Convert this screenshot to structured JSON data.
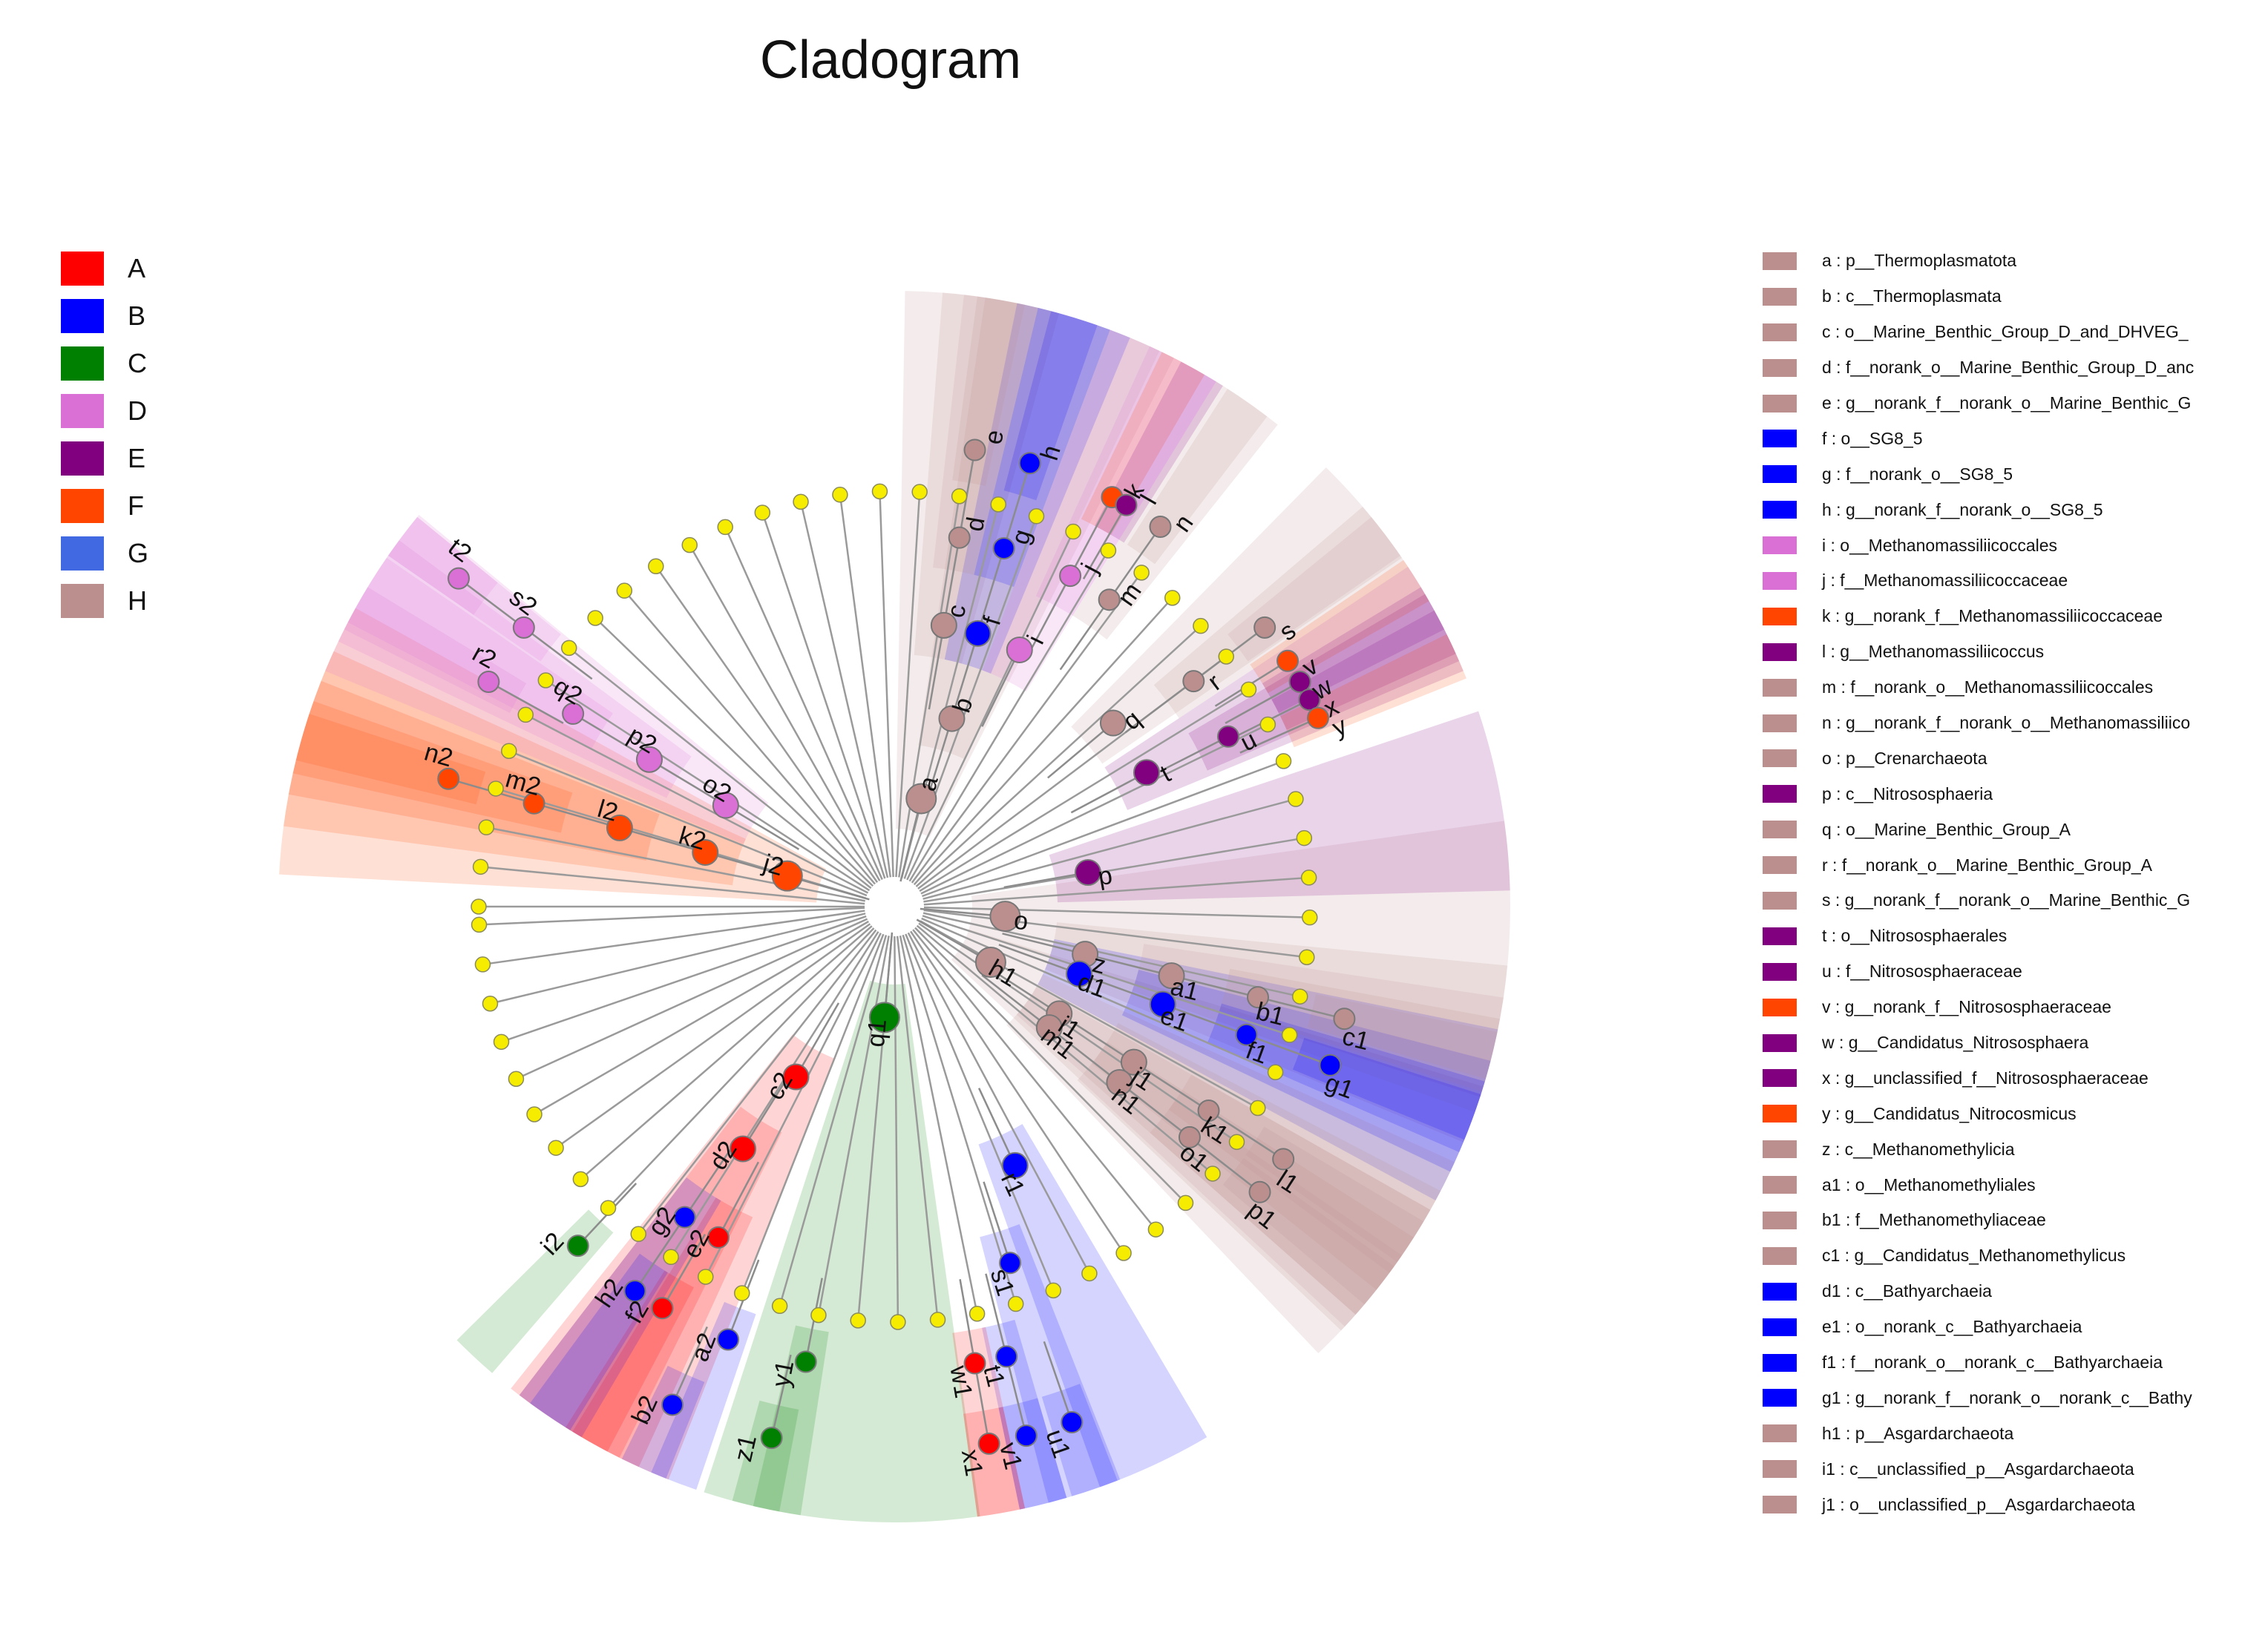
{
  "title": "Cladogram",
  "chart_data": {
    "type": "cladogram",
    "title": "Cladogram",
    "groups": [
      {
        "name": "A",
        "color": "#ff0000"
      },
      {
        "name": "B",
        "color": "#0000ff"
      },
      {
        "name": "C",
        "color": "#008000"
      },
      {
        "name": "D",
        "color": "#da70d6"
      },
      {
        "name": "E",
        "color": "#800080"
      },
      {
        "name": "F",
        "color": "#ff4500"
      },
      {
        "name": "G",
        "color": "#4169e1"
      },
      {
        "name": "H",
        "color": "#bc8f8f"
      }
    ],
    "taxa_key": [
      {
        "id": "a",
        "group": "H",
        "text": "a : p__Thermoplasmatota"
      },
      {
        "id": "b",
        "group": "H",
        "text": "b : c__Thermoplasmata"
      },
      {
        "id": "c",
        "group": "H",
        "text": "c : o__Marine_Benthic_Group_D_and_DHVEG_"
      },
      {
        "id": "d",
        "group": "H",
        "text": "d : f__norank_o__Marine_Benthic_Group_D_anc"
      },
      {
        "id": "e",
        "group": "H",
        "text": "e : g__norank_f__norank_o__Marine_Benthic_G"
      },
      {
        "id": "f",
        "group": "B",
        "text": "f : o__SG8_5"
      },
      {
        "id": "g",
        "group": "B",
        "text": "g : f__norank_o__SG8_5"
      },
      {
        "id": "h",
        "group": "B",
        "text": "h : g__norank_f__norank_o__SG8_5"
      },
      {
        "id": "i",
        "group": "D",
        "text": "i : o__Methanomassiliicoccales"
      },
      {
        "id": "j",
        "group": "D",
        "text": "j : f__Methanomassiliicoccaceae"
      },
      {
        "id": "k",
        "group": "F",
        "text": "k : g__norank_f__Methanomassiliicoccaceae"
      },
      {
        "id": "l",
        "group": "E",
        "text": "l : g__Methanomassiliicoccus"
      },
      {
        "id": "m",
        "group": "H",
        "text": "m : f__norank_o__Methanomassiliicoccales"
      },
      {
        "id": "n",
        "group": "H",
        "text": "n : g__norank_f__norank_o__Methanomassiliico"
      },
      {
        "id": "o",
        "group": "H",
        "text": "o : p__Crenarchaeota"
      },
      {
        "id": "p",
        "group": "E",
        "text": "p : c__Nitrososphaeria"
      },
      {
        "id": "q",
        "group": "H",
        "text": "q : o__Marine_Benthic_Group_A"
      },
      {
        "id": "r",
        "group": "H",
        "text": "r : f__norank_o__Marine_Benthic_Group_A"
      },
      {
        "id": "s",
        "group": "H",
        "text": "s : g__norank_f__norank_o__Marine_Benthic_G"
      },
      {
        "id": "t",
        "group": "E",
        "text": "t : o__Nitrososphaerales"
      },
      {
        "id": "u",
        "group": "E",
        "text": "u : f__Nitrososphaeraceae"
      },
      {
        "id": "v",
        "group": "F",
        "text": "v : g__norank_f__Nitrososphaeraceae"
      },
      {
        "id": "w",
        "group": "E",
        "text": "w : g__Candidatus_Nitrososphaera"
      },
      {
        "id": "x",
        "group": "E",
        "text": "x : g__unclassified_f__Nitrososphaeraceae"
      },
      {
        "id": "y",
        "group": "F",
        "text": "y : g__Candidatus_Nitrocosmicus"
      },
      {
        "id": "z",
        "group": "H",
        "text": "z : c__Methanomethylicia"
      },
      {
        "id": "a1",
        "group": "H",
        "text": "a1 : o__Methanomethyliales"
      },
      {
        "id": "b1",
        "group": "H",
        "text": "b1 : f__Methanomethyliaceae"
      },
      {
        "id": "c1",
        "group": "H",
        "text": "c1 : g__Candidatus_Methanomethylicus"
      },
      {
        "id": "d1",
        "group": "B",
        "text": "d1 : c__Bathyarchaeia"
      },
      {
        "id": "e1",
        "group": "B",
        "text": "e1 : o__norank_c__Bathyarchaeia"
      },
      {
        "id": "f1",
        "group": "B",
        "text": "f1 : f__norank_o__norank_c__Bathyarchaeia"
      },
      {
        "id": "g1",
        "group": "B",
        "text": "g1 : g__norank_f__norank_o__norank_c__Bathy"
      },
      {
        "id": "h1",
        "group": "H",
        "text": "h1 : p__Asgardarchaeota"
      },
      {
        "id": "i1",
        "group": "H",
        "text": "i1 : c__unclassified_p__Asgardarchaeota"
      },
      {
        "id": "j1",
        "group": "H",
        "text": "j1 : o__unclassified_p__Asgardarchaeota"
      }
    ],
    "nodes": [
      {
        "id": "a",
        "angle": -76,
        "level": 1,
        "group": "H"
      },
      {
        "id": "b",
        "angle": -73,
        "level": 2,
        "group": "H"
      },
      {
        "id": "c",
        "angle": -80,
        "level": 3,
        "group": "H"
      },
      {
        "id": "d",
        "angle": -80,
        "level": 4,
        "group": "H"
      },
      {
        "id": "e",
        "angle": -80,
        "level": 5,
        "group": "H"
      },
      {
        "id": "f",
        "angle": -73,
        "level": 3,
        "group": "B"
      },
      {
        "id": "g",
        "angle": -73,
        "level": 4,
        "group": "B"
      },
      {
        "id": "h",
        "angle": -73,
        "level": 5,
        "group": "B"
      },
      {
        "id": "i",
        "angle": -64,
        "level": 3,
        "group": "D"
      },
      {
        "id": "j",
        "angle": -62,
        "level": 4,
        "group": "D"
      },
      {
        "id": "k",
        "angle": -62,
        "level": 5,
        "group": "F"
      },
      {
        "id": "l",
        "angle": -60,
        "level": 5,
        "group": "E"
      },
      {
        "id": "m",
        "angle": -55,
        "level": 4,
        "group": "H"
      },
      {
        "id": "n",
        "angle": -55,
        "level": 5,
        "group": "H"
      },
      {
        "id": "o",
        "angle": 5,
        "level": 1,
        "group": "H"
      },
      {
        "id": "p",
        "angle": -10,
        "level": 2,
        "group": "E"
      },
      {
        "id": "q",
        "angle": -40,
        "level": 3,
        "group": "H"
      },
      {
        "id": "r",
        "angle": -37,
        "level": 4,
        "group": "H"
      },
      {
        "id": "s",
        "angle": -37,
        "level": 5,
        "group": "H"
      },
      {
        "id": "t",
        "angle": -28,
        "level": 3,
        "group": "E"
      },
      {
        "id": "u",
        "angle": -27,
        "level": 4,
        "group": "E"
      },
      {
        "id": "v",
        "angle": -32,
        "level": 5,
        "group": "F"
      },
      {
        "id": "w",
        "angle": -29,
        "level": 5,
        "group": "E"
      },
      {
        "id": "x",
        "angle": -26.5,
        "level": 5,
        "group": "E"
      },
      {
        "id": "y",
        "angle": -24,
        "level": 5,
        "group": "F"
      },
      {
        "id": "z",
        "angle": 14,
        "level": 2,
        "group": "H"
      },
      {
        "id": "a1",
        "angle": 14,
        "level": 3,
        "group": "H"
      },
      {
        "id": "b1",
        "angle": 14,
        "level": 4,
        "group": "H"
      },
      {
        "id": "c1",
        "angle": 14,
        "level": 5,
        "group": "H"
      },
      {
        "id": "d1",
        "angle": 20,
        "level": 2,
        "group": "B"
      },
      {
        "id": "e1",
        "angle": 20,
        "level": 3,
        "group": "B"
      },
      {
        "id": "f1",
        "angle": 20,
        "level": 4,
        "group": "B"
      },
      {
        "id": "g1",
        "angle": 20,
        "level": 5,
        "group": "B"
      },
      {
        "id": "h1",
        "angle": 30,
        "level": 1,
        "group": "H"
      },
      {
        "id": "i1",
        "angle": 33,
        "level": 2,
        "group": "H"
      },
      {
        "id": "j1",
        "angle": 33,
        "level": 3,
        "group": "H"
      },
      {
        "id": "k1",
        "angle": 33,
        "level": 4,
        "group": "H"
      },
      {
        "id": "l1",
        "angle": 33,
        "level": 5,
        "group": "H"
      },
      {
        "id": "m1",
        "angle": 38,
        "level": 2,
        "group": "H"
      },
      {
        "id": "n1",
        "angle": 38,
        "level": 3,
        "group": "H"
      },
      {
        "id": "o1",
        "angle": 38,
        "level": 4,
        "group": "H"
      },
      {
        "id": "p1",
        "angle": 38,
        "level": 5,
        "group": "H"
      },
      {
        "id": "q1",
        "angle": 95,
        "level": 1,
        "group": "C"
      },
      {
        "id": "r1",
        "angle": 65,
        "level": 3,
        "group": "B"
      },
      {
        "id": "s1",
        "angle": 72,
        "level": 4,
        "group": "B"
      },
      {
        "id": "t1",
        "angle": 76,
        "level": 5,
        "group": "B"
      },
      {
        "id": "u1",
        "angle": 71,
        "level": 6,
        "group": "B"
      },
      {
        "id": "v1",
        "angle": 76,
        "level": 6,
        "group": "B"
      },
      {
        "id": "w1",
        "angle": 80,
        "level": 5,
        "group": "A"
      },
      {
        "id": "x1",
        "angle": 80,
        "level": 6,
        "group": "A"
      },
      {
        "id": "y1",
        "angle": 101,
        "level": 5,
        "group": "C"
      },
      {
        "id": "z1",
        "angle": 103,
        "level": 6,
        "group": "C"
      },
      {
        "id": "a2",
        "angle": 111,
        "level": 5,
        "group": "B"
      },
      {
        "id": "b2",
        "angle": 114,
        "level": 6,
        "group": "B"
      },
      {
        "id": "c2",
        "angle": 120,
        "level": 2,
        "group": "A"
      },
      {
        "id": "d2",
        "angle": 122,
        "level": 3,
        "group": "A"
      },
      {
        "id": "e2",
        "angle": 118,
        "level": 4,
        "group": "A"
      },
      {
        "id": "f2",
        "angle": 120,
        "level": 5,
        "group": "A"
      },
      {
        "id": "g2",
        "angle": 124,
        "level": 4,
        "group": "B"
      },
      {
        "id": "h2",
        "angle": 124,
        "level": 5,
        "group": "B"
      },
      {
        "id": "i2",
        "angle": 133,
        "level": 5,
        "group": "C"
      },
      {
        "id": "j2",
        "angle": -164,
        "level": 1,
        "group": "F"
      },
      {
        "id": "k2",
        "angle": -164,
        "level": 2,
        "group": "F"
      },
      {
        "id": "l2",
        "angle": -164,
        "level": 3,
        "group": "F"
      },
      {
        "id": "m2",
        "angle": -164,
        "level": 4,
        "group": "F"
      },
      {
        "id": "n2",
        "angle": -164,
        "level": 5,
        "group": "F"
      },
      {
        "id": "o2",
        "angle": -149,
        "level": 2,
        "group": "D"
      },
      {
        "id": "p2",
        "angle": -149,
        "level": 3,
        "group": "D"
      },
      {
        "id": "q2",
        "angle": -149,
        "level": 4,
        "group": "D"
      },
      {
        "id": "r2",
        "angle": -151,
        "level": 5,
        "group": "D"
      },
      {
        "id": "s2",
        "angle": -143,
        "level": 5,
        "group": "D"
      },
      {
        "id": "t2",
        "angle": -143,
        "level": 6,
        "group": "D"
      }
    ]
  }
}
